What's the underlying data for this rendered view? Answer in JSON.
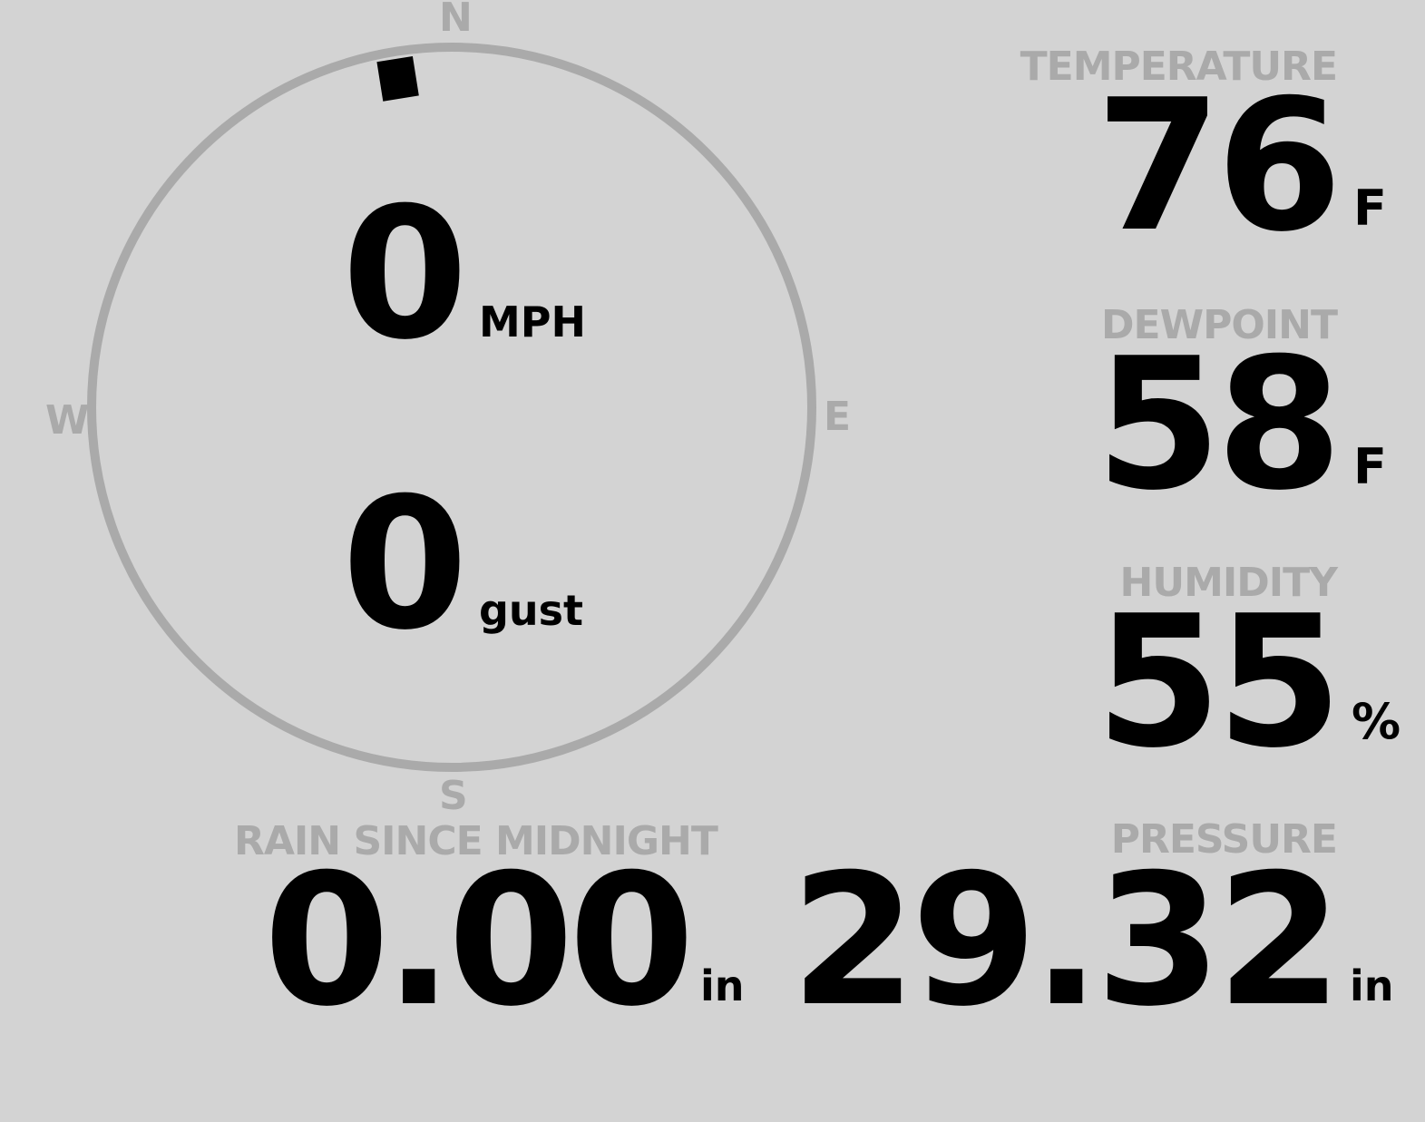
{
  "wind": {
    "speed": "0",
    "speed_unit": "MPH",
    "gust": "0",
    "gust_unit": "gust",
    "direction_deg": 351,
    "compass": {
      "n": "N",
      "e": "E",
      "s": "S",
      "w": "W"
    }
  },
  "temperature": {
    "label": "TEMPERATURE",
    "value": "76",
    "unit": "F"
  },
  "dewpoint": {
    "label": "DEWPOINT",
    "value": "58",
    "unit": "F"
  },
  "humidity": {
    "label": "HUMIDITY",
    "value": "55",
    "unit": "%"
  },
  "rain": {
    "label": "RAIN SINCE MIDNIGHT",
    "value": "0.00",
    "unit": "in"
  },
  "pressure": {
    "label": "PRESSURE",
    "value": "29.32",
    "unit": "in"
  },
  "colors": {
    "background": "#d3d3d3",
    "muted": "#aaaaaa",
    "text": "#000000"
  }
}
